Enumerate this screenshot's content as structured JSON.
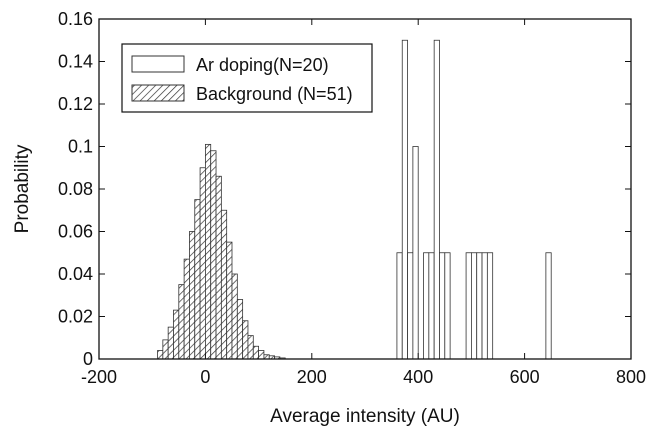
{
  "chart_data": {
    "type": "bar",
    "title": "",
    "xlabel": "Average intensity (AU)",
    "ylabel": "Probability",
    "xlim": [
      -200,
      800
    ],
    "ylim": [
      0,
      0.16
    ],
    "xticks": [
      -200,
      0,
      200,
      400,
      600,
      800
    ],
    "yticks": [
      0,
      0.02,
      0.04,
      0.06,
      0.08,
      0.1,
      0.12,
      0.14,
      0.16
    ],
    "xtick_labels": [
      "-200",
      "0",
      "200",
      "400",
      "600",
      "800"
    ],
    "ytick_labels": [
      "0",
      "0.02",
      "0.04",
      "0.06",
      "0.08",
      "0.1",
      "0.12",
      "0.14",
      "0.16"
    ],
    "grid": false,
    "legend_position": "top-left",
    "series": [
      {
        "name": "Ar doping(N=20)",
        "fill": "open",
        "bin_width": 10,
        "x": [
          360,
          370,
          380,
          390,
          410,
          420,
          430,
          440,
          450,
          490,
          500,
          510,
          520,
          530,
          640
        ],
        "values": [
          0.05,
          0.15,
          0.05,
          0.1,
          0.05,
          0.05,
          0.15,
          0.05,
          0.05,
          0.05,
          0.05,
          0.05,
          0.05,
          0.05,
          0.05
        ]
      },
      {
        "name": "Background (N=51)",
        "fill": "hatched",
        "bin_width": 10,
        "x": [
          -90,
          -80,
          -70,
          -60,
          -50,
          -40,
          -30,
          -20,
          -10,
          0,
          10,
          20,
          30,
          40,
          50,
          60,
          70,
          80,
          90,
          100,
          110,
          120,
          130,
          140
        ],
        "values": [
          0.004,
          0.009,
          0.015,
          0.023,
          0.035,
          0.047,
          0.06,
          0.075,
          0.09,
          0.101,
          0.098,
          0.086,
          0.07,
          0.055,
          0.04,
          0.028,
          0.018,
          0.011,
          0.006,
          0.004,
          0.002,
          0.0015,
          0.001,
          0.0005
        ]
      }
    ]
  }
}
